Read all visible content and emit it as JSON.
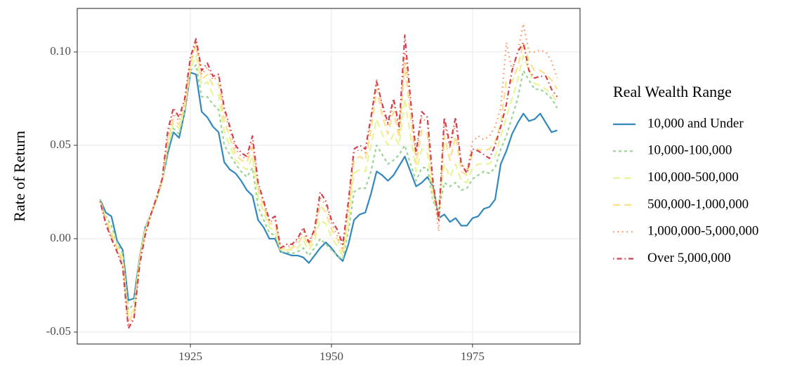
{
  "chart_data": {
    "type": "line",
    "y_label": "Rate of Return",
    "legend_title": "Real Wealth Range",
    "legend": "right",
    "grid": true,
    "x": [
      1909,
      1910,
      1911,
      1912,
      1913,
      1914,
      1915,
      1916,
      1917,
      1918,
      1919,
      1920,
      1921,
      1922,
      1923,
      1924,
      1925,
      1926,
      1927,
      1928,
      1929,
      1930,
      1931,
      1932,
      1933,
      1934,
      1935,
      1936,
      1937,
      1938,
      1939,
      1940,
      1941,
      1942,
      1943,
      1944,
      1945,
      1946,
      1947,
      1948,
      1949,
      1950,
      1951,
      1952,
      1953,
      1954,
      1955,
      1956,
      1957,
      1958,
      1959,
      1960,
      1961,
      1962,
      1963,
      1964,
      1965,
      1966,
      1967,
      1968,
      1969,
      1970,
      1971,
      1972,
      1973,
      1974,
      1975,
      1976,
      1977,
      1978,
      1979,
      1980,
      1981,
      1982,
      1983,
      1984,
      1985,
      1986,
      1987,
      1988,
      1989,
      1990
    ],
    "xlim": [
      1904.95,
      1994.05
    ],
    "xticks": [
      1925,
      1950,
      1975
    ],
    "ylim": [
      -0.0564,
      0.1233
    ],
    "yticks": [
      {
        "value": -0.05,
        "label": "-0.05"
      },
      {
        "value": 0,
        "label": "0.00"
      },
      {
        "value": 0.05,
        "label": "0.05"
      },
      {
        "value": 0.1,
        "label": "0.10"
      }
    ],
    "series": [
      {
        "name": "10,000 and Under",
        "color": "#3288bd",
        "dash": "solid",
        "values": [
          0.021,
          0.014,
          0.012,
          -0.001,
          -0.006,
          -0.033,
          -0.032,
          -0.01,
          0.006,
          0.013,
          0.021,
          0.031,
          0.046,
          0.057,
          0.054,
          0.068,
          0.089,
          0.088,
          0.068,
          0.065,
          0.06,
          0.057,
          0.041,
          0.037,
          0.035,
          0.031,
          0.026,
          0.023,
          0.01,
          0.006,
          0.0,
          0.0,
          -0.007,
          -0.008,
          -0.009,
          -0.009,
          -0.01,
          -0.013,
          -0.009,
          -0.005,
          -0.002,
          -0.005,
          -0.009,
          -0.012,
          -0.003,
          0.01,
          0.013,
          0.014,
          0.024,
          0.036,
          0.034,
          0.031,
          0.034,
          0.039,
          0.044,
          0.036,
          0.028,
          0.03,
          0.033,
          0.028,
          0.011,
          0.013,
          0.009,
          0.011,
          0.007,
          0.007,
          0.011,
          0.012,
          0.016,
          0.017,
          0.021,
          0.04,
          0.047,
          0.056,
          0.062,
          0.067,
          0.063,
          0.064,
          0.067,
          0.062,
          0.057,
          0.058
        ]
      },
      {
        "name": "10,000-100,000",
        "color": "#99d594",
        "dash": "dashed",
        "values": [
          0.021,
          0.012,
          0.007,
          -0.002,
          -0.008,
          -0.038,
          -0.035,
          -0.01,
          0.006,
          0.013,
          0.021,
          0.031,
          0.048,
          0.059,
          0.056,
          0.069,
          0.09,
          0.093,
          0.076,
          0.076,
          0.072,
          0.069,
          0.05,
          0.045,
          0.04,
          0.036,
          0.033,
          0.038,
          0.017,
          0.01,
          0.003,
          0.002,
          -0.007,
          -0.007,
          -0.008,
          -0.007,
          -0.005,
          -0.009,
          -0.005,
          0.0,
          -0.003,
          -0.006,
          -0.009,
          -0.011,
          0.004,
          0.025,
          0.027,
          0.027,
          0.036,
          0.05,
          0.045,
          0.04,
          0.042,
          0.045,
          0.05,
          0.04,
          0.031,
          0.038,
          0.038,
          0.02,
          0.015,
          0.03,
          0.028,
          0.03,
          0.026,
          0.027,
          0.032,
          0.034,
          0.036,
          0.035,
          0.038,
          0.048,
          0.055,
          0.065,
          0.075,
          0.09,
          0.085,
          0.08,
          0.08,
          0.078,
          0.075,
          0.07
        ]
      },
      {
        "name": "100,000-500,000",
        "color": "#e6f598",
        "dash": "longdash",
        "values": [
          0.02,
          0.011,
          0.004,
          -0.004,
          -0.01,
          -0.042,
          -0.038,
          -0.011,
          0.005,
          0.013,
          0.021,
          0.031,
          0.05,
          0.062,
          0.059,
          0.07,
          0.091,
          0.098,
          0.082,
          0.084,
          0.077,
          0.077,
          0.057,
          0.05,
          0.042,
          0.039,
          0.037,
          0.044,
          0.022,
          0.014,
          0.006,
          0.004,
          -0.006,
          -0.006,
          -0.006,
          -0.005,
          -0.001,
          -0.006,
          -0.001,
          0.01,
          0.008,
          0.001,
          -0.004,
          -0.009,
          0.008,
          0.035,
          0.037,
          0.036,
          0.05,
          0.064,
          0.056,
          0.05,
          0.056,
          0.05,
          0.075,
          0.055,
          0.036,
          0.048,
          0.046,
          0.022,
          0.018,
          0.04,
          0.033,
          0.04,
          0.031,
          0.03,
          0.038,
          0.04,
          0.04,
          0.04,
          0.044,
          0.055,
          0.065,
          0.075,
          0.085,
          0.098,
          0.09,
          0.083,
          0.082,
          0.08,
          0.078,
          0.073
        ]
      },
      {
        "name": "500,000-1,000,000",
        "color": "#fee08b",
        "dash": "longdash",
        "values": [
          0.02,
          0.01,
          0.002,
          -0.005,
          -0.012,
          -0.044,
          -0.04,
          -0.011,
          0.004,
          0.013,
          0.022,
          0.031,
          0.052,
          0.064,
          0.061,
          0.071,
          0.093,
          0.104,
          0.085,
          0.088,
          0.082,
          0.083,
          0.063,
          0.054,
          0.045,
          0.042,
          0.041,
          0.049,
          0.026,
          0.017,
          0.008,
          0.008,
          -0.006,
          -0.005,
          -0.005,
          -0.003,
          0.002,
          -0.004,
          0.002,
          0.018,
          0.014,
          0.005,
          0.0,
          -0.007,
          0.014,
          0.042,
          0.044,
          0.042,
          0.058,
          0.08,
          0.066,
          0.056,
          0.068,
          0.054,
          0.094,
          0.066,
          0.04,
          0.058,
          0.056,
          0.025,
          0.01,
          0.055,
          0.042,
          0.055,
          0.036,
          0.034,
          0.046,
          0.048,
          0.047,
          0.048,
          0.052,
          0.062,
          0.085,
          0.084,
          0.092,
          0.105,
          0.095,
          0.09,
          0.09,
          0.088,
          0.085,
          0.08
        ]
      },
      {
        "name": "1,000,000-5,000,000",
        "color": "#fc8d59",
        "dash": "dotted",
        "values": [
          0.02,
          0.009,
          0.001,
          -0.006,
          -0.014,
          -0.046,
          -0.042,
          -0.012,
          0.003,
          0.013,
          0.022,
          0.032,
          0.055,
          0.067,
          0.063,
          0.073,
          0.095,
          0.105,
          0.088,
          0.092,
          0.085,
          0.087,
          0.068,
          0.058,
          0.048,
          0.044,
          0.043,
          0.052,
          0.029,
          0.019,
          0.009,
          0.01,
          -0.005,
          -0.004,
          -0.004,
          -0.001,
          0.004,
          -0.002,
          0.004,
          0.022,
          0.018,
          0.008,
          0.002,
          -0.005,
          0.018,
          0.046,
          0.048,
          0.046,
          0.063,
          0.086,
          0.07,
          0.06,
          0.073,
          0.058,
          0.1,
          0.072,
          0.044,
          0.065,
          0.062,
          0.028,
          0.004,
          0.062,
          0.048,
          0.062,
          0.04,
          0.036,
          0.052,
          0.055,
          0.053,
          0.055,
          0.06,
          0.07,
          0.105,
          0.09,
          0.1,
          0.115,
          0.1,
          0.1,
          0.101,
          0.1,
          0.095,
          0.086
        ]
      },
      {
        "name": "Over 5,000,000",
        "color": "#d53e4f",
        "dash": "dotdash",
        "values": [
          0.02,
          0.008,
          0.0,
          -0.007,
          -0.015,
          -0.048,
          -0.043,
          -0.014,
          0.002,
          0.013,
          0.022,
          0.032,
          0.058,
          0.07,
          0.065,
          0.075,
          0.097,
          0.107,
          0.09,
          0.094,
          0.087,
          0.088,
          0.07,
          0.06,
          0.05,
          0.046,
          0.044,
          0.055,
          0.03,
          0.02,
          0.01,
          0.012,
          -0.005,
          -0.003,
          -0.003,
          0.0,
          0.006,
          -0.002,
          0.005,
          0.025,
          0.02,
          0.01,
          0.005,
          -0.003,
          0.02,
          0.048,
          0.05,
          0.048,
          0.065,
          0.084,
          0.072,
          0.062,
          0.075,
          0.06,
          0.109,
          0.075,
          0.046,
          0.068,
          0.065,
          0.03,
          0.01,
          0.065,
          0.05,
          0.065,
          0.04,
          0.035,
          0.048,
          0.047,
          0.045,
          0.043,
          0.05,
          0.06,
          0.072,
          0.09,
          0.1,
          0.105,
          0.09,
          0.086,
          0.087,
          0.087,
          0.08,
          0.076
        ]
      }
    ]
  }
}
